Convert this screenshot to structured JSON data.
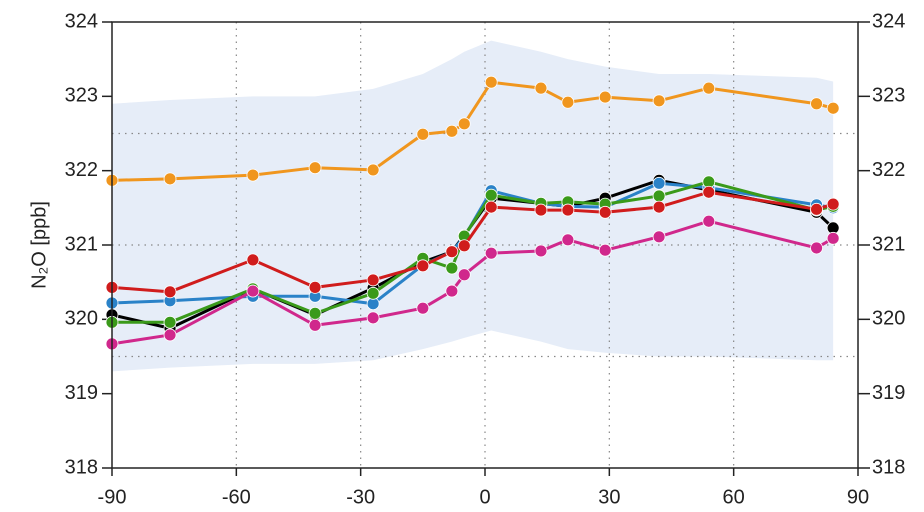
{
  "chart_data": {
    "type": "line",
    "ylabel": "N₂O  [ppb]",
    "x": [
      -90,
      -76,
      -56,
      -41,
      -27,
      -15,
      -8,
      -5,
      1.5,
      13.5,
      20,
      29,
      42,
      54,
      80,
      84
    ],
    "xlim": [
      -90,
      90
    ],
    "xticks": [
      -90,
      -60,
      -30,
      0,
      30,
      60,
      90
    ],
    "ylim": [
      318,
      324
    ],
    "yticks": [
      318,
      319,
      320,
      321,
      322,
      323,
      324
    ],
    "right_axis": true,
    "xgrid": true,
    "hlines": [
      322.5,
      321,
      319.5
    ],
    "band": {
      "color": "#e6edf8",
      "upper": [
        322.9,
        322.95,
        323.0,
        323.0,
        323.1,
        323.3,
        323.5,
        323.6,
        323.75,
        323.6,
        323.5,
        323.4,
        323.3,
        323.3,
        323.25,
        323.2
      ],
      "lower": [
        319.3,
        319.35,
        319.4,
        319.4,
        319.45,
        319.6,
        319.7,
        319.75,
        319.85,
        319.7,
        319.6,
        319.55,
        319.5,
        319.5,
        319.45,
        319.45
      ]
    },
    "series": [
      {
        "color": "#f0961e",
        "values": [
          321.87,
          321.89,
          321.94,
          322.04,
          322.01,
          322.49,
          322.53,
          322.63,
          323.19,
          323.11,
          322.92,
          322.99,
          322.94,
          323.11,
          322.9,
          322.84
        ]
      },
      {
        "color": "#000000",
        "values": [
          320.06,
          319.88,
          320.41,
          320.06,
          320.42,
          320.77,
          320.91,
          321.13,
          321.63,
          321.56,
          321.52,
          321.63,
          321.87,
          321.74,
          321.44,
          321.23
        ]
      },
      {
        "color": "#2a82c8",
        "values": [
          320.22,
          320.25,
          320.31,
          320.31,
          320.21,
          320.73,
          320.91,
          321.11,
          321.73,
          321.56,
          321.52,
          321.51,
          321.83,
          321.77,
          321.54,
          321.5
        ]
      },
      {
        "color": "#3a9a1a",
        "values": [
          319.96,
          319.96,
          320.41,
          320.08,
          320.35,
          320.82,
          320.69,
          321.12,
          321.67,
          321.56,
          321.58,
          321.55,
          321.66,
          321.85,
          321.47,
          321.52
        ]
      },
      {
        "color": "#d01c1c",
        "values": [
          320.43,
          320.37,
          320.8,
          320.43,
          320.53,
          320.72,
          320.91,
          320.99,
          321.51,
          321.47,
          321.47,
          321.44,
          321.51,
          321.71,
          321.48,
          321.55
        ]
      },
      {
        "color": "#d0288c",
        "values": [
          319.67,
          319.79,
          320.38,
          319.92,
          320.02,
          320.15,
          320.38,
          320.6,
          320.89,
          320.92,
          321.07,
          320.93,
          321.11,
          321.32,
          320.96,
          321.09
        ]
      }
    ]
  }
}
